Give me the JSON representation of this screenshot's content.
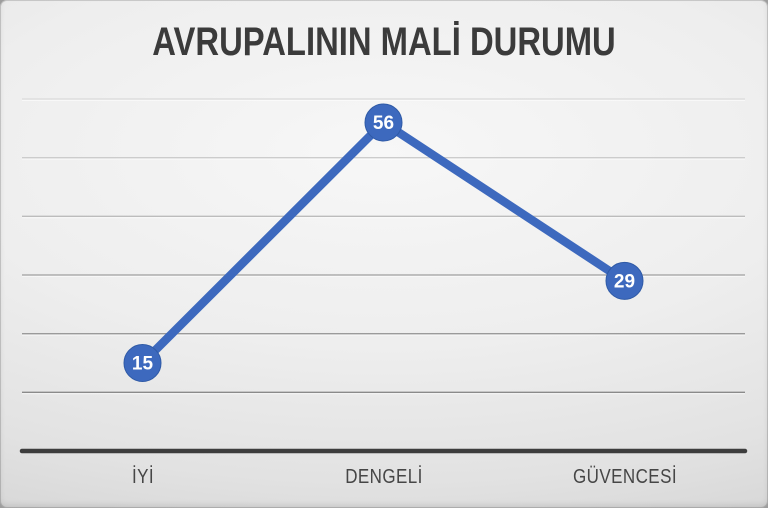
{
  "chart_data": {
    "type": "line",
    "title": "AVRUPALININ MALİ DURUMU",
    "categories": [
      "İYİ",
      "DENGELİ",
      "GÜVENCESİ"
    ],
    "values": [
      15,
      56,
      29
    ],
    "xlabel": "",
    "ylabel": "",
    "ylim": [
      0,
      60
    ],
    "grid_step": 10,
    "grid": true,
    "legend": false,
    "data_labels": true,
    "colors": {
      "line": "#3d69be",
      "marker_fill": "#3d69be",
      "marker_border": "#2f5aa6",
      "value_text": "#ffffff",
      "axis": "#3d3d3d",
      "title_text": "#3b3b3b",
      "category_text": "#464646"
    }
  }
}
